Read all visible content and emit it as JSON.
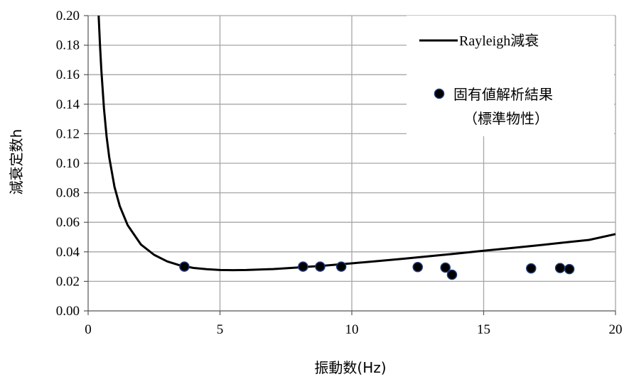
{
  "chart_data": {
    "type": "scatter",
    "xlabel": "振動数(Hz)",
    "ylabel": "減衰定数h",
    "xlim": [
      0,
      20
    ],
    "ylim": [
      0,
      0.2
    ],
    "xticks": [
      0,
      5,
      10,
      15,
      20
    ],
    "yticks": [
      0.0,
      0.02,
      0.04,
      0.06,
      0.08,
      0.1,
      0.12,
      0.14,
      0.16,
      0.18,
      0.2
    ],
    "xtick_labels": [
      "0",
      "5",
      "10",
      "15",
      "20"
    ],
    "ytick_labels": [
      "0.00",
      "0.02",
      "0.04",
      "0.06",
      "0.08",
      "0.10",
      "0.12",
      "0.14",
      "0.16",
      "0.18",
      "0.20"
    ],
    "grid": true,
    "legend_position": "top-right",
    "series": [
      {
        "name": "Rayleigh減衰",
        "kind": "line",
        "color": "#000000",
        "x": [
          0.4,
          0.45,
          0.5,
          0.6,
          0.7,
          0.8,
          1.0,
          1.2,
          1.5,
          2.0,
          2.5,
          3.0,
          3.5,
          4.0,
          4.5,
          5.0,
          5.5,
          6.0,
          7.0,
          8.0,
          9.0,
          10.0,
          11.0,
          12.0,
          13.0,
          14.0,
          15.0,
          16.0,
          17.0,
          18.0,
          19.0,
          20.0
        ],
        "y": [
          0.2,
          0.18,
          0.163,
          0.137,
          0.118,
          0.104,
          0.084,
          0.071,
          0.058,
          0.045,
          0.038,
          0.0335,
          0.0307,
          0.0291,
          0.0282,
          0.0277,
          0.0276,
          0.0277,
          0.0283,
          0.0294,
          0.0307,
          0.0322,
          0.0338,
          0.0354,
          0.0371,
          0.0389,
          0.0407,
          0.0425,
          0.0443,
          0.0462,
          0.0481,
          0.052
        ]
      },
      {
        "name": "固有値解析結果\n（標準物性）",
        "legend_lines": [
          "固有値解析結果",
          "（標準物性）"
        ],
        "kind": "scatter",
        "color": "#000000",
        "edge_color": "#1f3a78",
        "x": [
          3.65,
          8.15,
          8.8,
          9.6,
          12.5,
          13.55,
          13.8,
          16.8,
          17.9,
          18.25
        ],
        "y": [
          0.03,
          0.03,
          0.03,
          0.03,
          0.0297,
          0.0293,
          0.0245,
          0.0288,
          0.029,
          0.0283
        ]
      }
    ]
  }
}
